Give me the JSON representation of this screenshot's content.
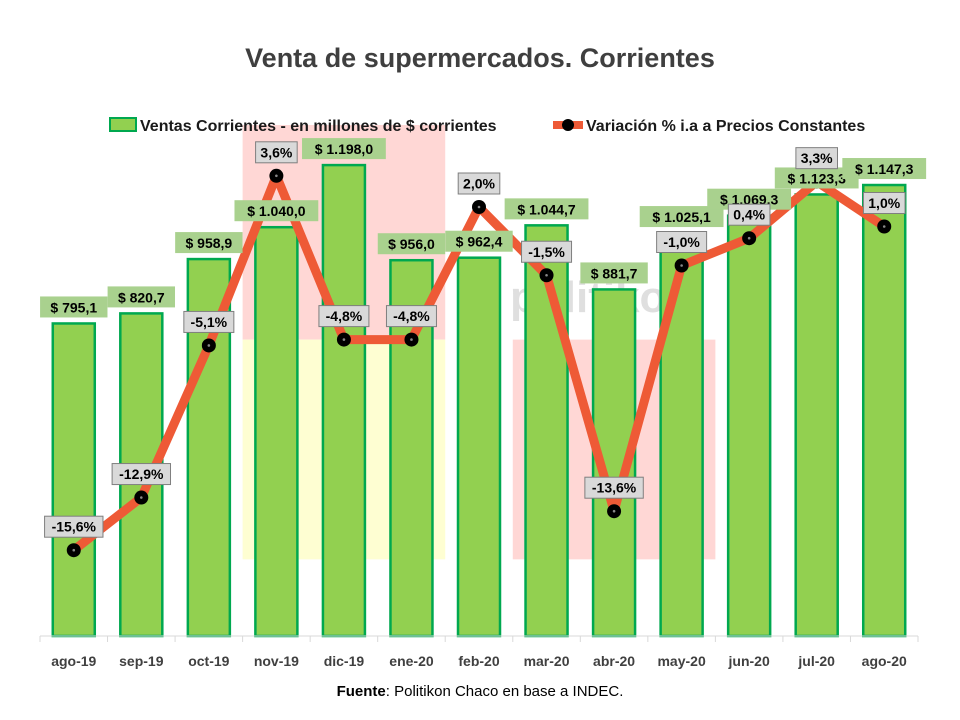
{
  "colors": {
    "bar_fill": "#92d050",
    "bar_stroke": "#00a84f",
    "line": "#ee5a36",
    "marker": "#000000",
    "bar_label_bg": "#a9d18e",
    "line_label_bg": "#d9d9d9",
    "band_red": "#ffd7d5",
    "band_yellow": "#fefed2"
  },
  "watermark": "politikon",
  "chart_data": {
    "type": "bar",
    "title": "Venta de supermercados. Corrientes",
    "legend_position": "top",
    "grid": false,
    "categories": [
      "ago-19",
      "sep-19",
      "oct-19",
      "nov-19",
      "dic-19",
      "ene-20",
      "feb-20",
      "mar-20",
      "abr-20",
      "may-20",
      "jun-20",
      "jul-20",
      "ago-20"
    ],
    "series": [
      {
        "name": "Ventas Corrientes - en millones de $ corrientes",
        "kind": "bar",
        "axis": "primary",
        "values": [
          795.1,
          820.7,
          958.9,
          1040.0,
          1198.0,
          956.0,
          962.4,
          1044.7,
          881.7,
          1025.1,
          1069.3,
          1123.3,
          1147.3
        ],
        "labels": [
          "$ 795,1",
          "$ 820,7",
          "$ 958,9",
          "$ 1.040,0",
          "$ 1.198,0",
          "$ 956,0",
          "$ 962,4",
          "$ 1.044,7",
          "$ 881,7",
          "$ 1.025,1",
          "$ 1.069,3",
          "$ 1.123,3",
          "$ 1.147,3"
        ]
      },
      {
        "name": "Variación % i.a a Precios Constantes",
        "kind": "line",
        "axis": "secondary",
        "values": [
          -15.6,
          -12.9,
          -5.1,
          3.6,
          -4.8,
          -4.8,
          2.0,
          -1.5,
          -13.6,
          -1.0,
          0.4,
          3.3,
          1.0
        ],
        "labels": [
          "-15,6%",
          "-12,9%",
          "-5,1%",
          "3,6%",
          "-4,8%",
          "-4,8%",
          "2,0%",
          "-1,5%",
          "-13,6%",
          "-1,0%",
          "0,4%",
          "3,3%",
          "1,0%"
        ]
      }
    ],
    "primary_ylim": [
      0,
      1300
    ],
    "secondary_ylim": [
      -20,
      8
    ],
    "background_bands": [
      {
        "from_category": "nov-19",
        "to_category": "ene-20",
        "color": "red",
        "axis_range": [
          1.0,
          0.58
        ]
      },
      {
        "from_category": "nov-19",
        "to_category": "ene-20",
        "color": "yellow",
        "axis_range": [
          0.58,
          0.15
        ]
      },
      {
        "from_category": "mar-20",
        "to_category": "may-20",
        "color": "red",
        "axis_range": [
          0.58,
          0.15
        ]
      }
    ]
  },
  "footer": {
    "source_bold": "Fuente",
    "source_text": ": Politikon Chaco en base a INDEC."
  }
}
